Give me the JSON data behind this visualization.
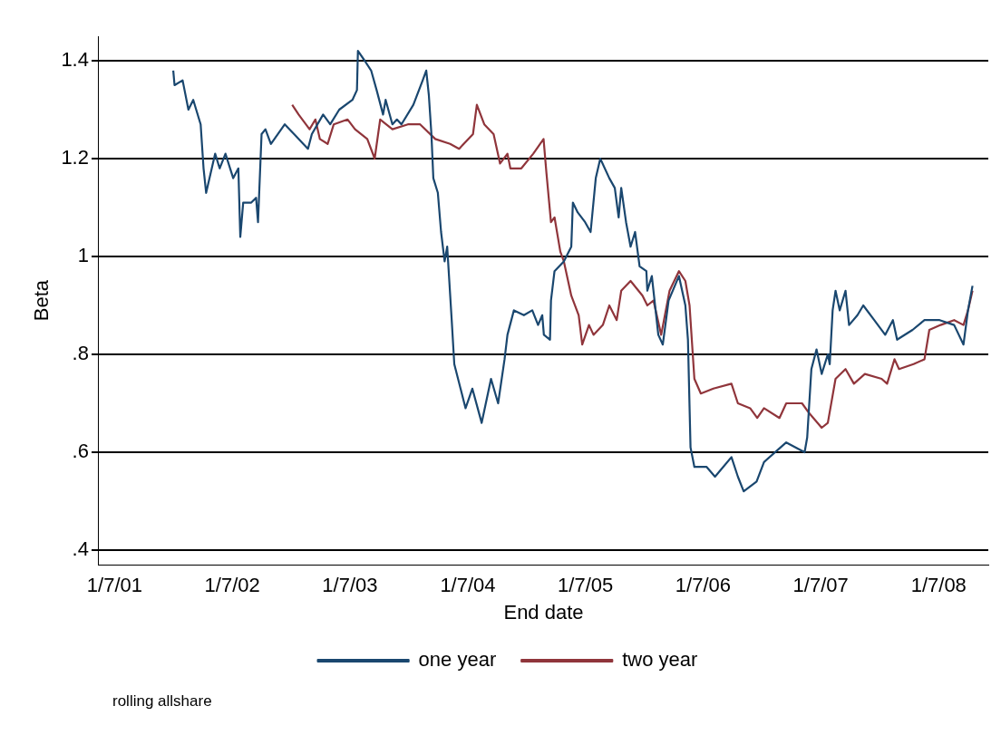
{
  "chart_data": {
    "type": "line",
    "xlabel": "End date",
    "ylabel": "Beta",
    "annotations": [
      "rolling allshare"
    ],
    "xlim": [
      "2001-05-13",
      "2008-12-02"
    ],
    "xticks": [
      {
        "value": "2001-07-01",
        "label": "1/7/01"
      },
      {
        "value": "2002-07-01",
        "label": "1/7/02"
      },
      {
        "value": "2003-07-01",
        "label": "1/7/03"
      },
      {
        "value": "2004-07-01",
        "label": "1/7/04"
      },
      {
        "value": "2005-07-01",
        "label": "1/7/05"
      },
      {
        "value": "2006-07-01",
        "label": "1/7/06"
      },
      {
        "value": "2007-07-01",
        "label": "1/7/07"
      },
      {
        "value": "2008-07-01",
        "label": "1/7/08"
      }
    ],
    "ylim": [
      0.37,
      1.45
    ],
    "yticks": [
      {
        "value": 0.4,
        "label": ".4"
      },
      {
        "value": 0.6,
        "label": ".6"
      },
      {
        "value": 0.8,
        "label": ".8"
      },
      1,
      1.2,
      1.4
    ],
    "grid": "y",
    "legend": "bottom",
    "marker": "none",
    "line_style": "solid",
    "series": [
      {
        "name": "one year",
        "color": "#1a476f",
        "x": [
          "2001-12-30",
          "2002-01-03",
          "2002-01-28",
          "2002-02-15",
          "2002-03-02",
          "2002-03-25",
          "2002-04-03",
          "2002-04-11",
          "2002-05-09",
          "2002-05-23",
          "2002-06-10",
          "2002-07-04",
          "2002-07-20",
          "2002-07-26",
          "2002-08-04",
          "2002-08-29",
          "2002-09-13",
          "2002-09-19",
          "2002-09-30",
          "2002-10-12",
          "2002-10-29",
          "2002-12-11",
          "2003-01-09",
          "2003-02-21",
          "2003-03-05",
          "2003-04-09",
          "2003-05-01",
          "2003-05-29",
          "2003-07-09",
          "2003-07-23",
          "2003-07-26",
          "2003-08-16",
          "2003-09-05",
          "2003-09-22",
          "2003-10-12",
          "2003-10-20",
          "2003-11-10",
          "2003-11-24",
          "2003-12-08",
          "2004-01-14",
          "2004-02-12",
          "2004-02-23",
          "2004-03-02",
          "2004-03-10",
          "2004-03-16",
          "2004-03-30",
          "2004-04-09",
          "2004-04-20",
          "2004-04-28",
          "2004-05-12",
          "2004-05-20",
          "2004-06-24",
          "2004-07-15",
          "2004-08-13",
          "2004-09-11",
          "2004-10-03",
          "2004-10-23",
          "2004-11-01",
          "2004-11-21",
          "2004-12-22",
          "2005-01-17",
          "2005-02-04",
          "2005-02-17",
          "2005-02-22",
          "2005-03-13",
          "2005-03-16",
          "2005-03-27",
          "2005-04-25",
          "2005-05-18",
          "2005-05-23",
          "2005-06-07",
          "2005-06-30",
          "2005-07-17",
          "2005-08-02",
          "2005-08-16",
          "2005-09-13",
          "2005-09-30",
          "2005-10-12",
          "2005-10-20",
          "2005-11-04",
          "2005-11-18",
          "2005-12-02",
          "2005-12-16",
          "2006-01-06",
          "2006-01-09",
          "2006-01-23",
          "2006-02-12",
          "2006-02-26",
          "2006-03-16",
          "2006-04-17",
          "2006-05-07",
          "2006-05-15",
          "2006-05-23",
          "2006-06-04",
          "2006-07-12",
          "2006-08-07",
          "2006-09-27",
          "2006-10-17",
          "2006-11-04",
          "2006-12-14",
          "2007-01-06",
          "2007-03-16",
          "2007-05-12",
          "2007-05-20",
          "2007-06-02",
          "2007-06-18",
          "2007-07-04",
          "2007-07-23",
          "2007-07-29",
          "2007-08-07",
          "2007-08-16",
          "2007-08-29",
          "2007-09-16",
          "2007-09-27",
          "2007-10-23",
          "2007-11-10",
          "2007-12-14",
          "2008-01-17",
          "2008-02-10",
          "2008-02-23",
          "2008-04-11",
          "2008-05-18",
          "2008-07-04",
          "2008-08-18",
          "2008-09-16",
          "2008-09-30",
          "2008-10-14"
        ],
        "values": [
          1.38,
          1.35,
          1.36,
          1.3,
          1.32,
          1.27,
          1.18,
          1.13,
          1.21,
          1.18,
          1.21,
          1.16,
          1.18,
          1.04,
          1.11,
          1.11,
          1.12,
          1.07,
          1.25,
          1.26,
          1.23,
          1.27,
          1.25,
          1.22,
          1.25,
          1.29,
          1.27,
          1.3,
          1.32,
          1.34,
          1.42,
          1.4,
          1.38,
          1.34,
          1.29,
          1.32,
          1.27,
          1.28,
          1.27,
          1.31,
          1.36,
          1.38,
          1.33,
          1.25,
          1.16,
          1.13,
          1.05,
          0.99,
          1.02,
          0.87,
          0.78,
          0.69,
          0.73,
          0.66,
          0.75,
          0.7,
          0.79,
          0.84,
          0.89,
          0.88,
          0.89,
          0.86,
          0.88,
          0.84,
          0.83,
          0.91,
          0.97,
          0.99,
          1.02,
          1.11,
          1.09,
          1.07,
          1.05,
          1.16,
          1.2,
          1.16,
          1.14,
          1.08,
          1.14,
          1.07,
          1.02,
          1.05,
          0.98,
          0.97,
          0.93,
          0.96,
          0.84,
          0.82,
          0.91,
          0.96,
          0.9,
          0.83,
          0.61,
          0.57,
          0.57,
          0.55,
          0.59,
          0.55,
          0.52,
          0.54,
          0.58,
          0.62,
          0.6,
          0.63,
          0.77,
          0.81,
          0.76,
          0.8,
          0.78,
          0.89,
          0.93,
          0.89,
          0.93,
          0.86,
          0.88,
          0.9,
          0.87,
          0.84,
          0.87,
          0.83,
          0.85,
          0.87,
          0.87,
          0.86,
          0.82,
          0.89,
          0.94
        ]
      },
      {
        "name": "two year",
        "color": "#90353b",
        "x": [
          "2003-01-03",
          "2003-01-23",
          "2003-02-26",
          "2003-03-16",
          "2003-03-30",
          "2003-04-23",
          "2003-05-12",
          "2003-06-24",
          "2003-07-17",
          "2003-08-24",
          "2003-09-16",
          "2003-10-03",
          "2003-11-10",
          "2003-12-28",
          "2004-02-04",
          "2004-03-22",
          "2004-05-07",
          "2004-06-04",
          "2004-07-17",
          "2004-07-29",
          "2004-08-21",
          "2004-09-19",
          "2004-10-09",
          "2004-11-01",
          "2004-11-10",
          "2004-12-14",
          "2005-01-20",
          "2005-02-21",
          "2005-03-02",
          "2005-03-16",
          "2005-03-27",
          "2005-04-14",
          "2005-04-25",
          "2005-05-18",
          "2005-06-10",
          "2005-06-21",
          "2005-07-12",
          "2005-07-26",
          "2005-08-24",
          "2005-09-13",
          "2005-10-06",
          "2005-10-20",
          "2005-11-18",
          "2005-12-25",
          "2006-01-09",
          "2006-01-28",
          "2006-02-21",
          "2006-03-19",
          "2006-04-17",
          "2006-05-07",
          "2006-05-20",
          "2006-06-04",
          "2006-06-24",
          "2006-08-02",
          "2006-09-27",
          "2006-10-17",
          "2006-11-24",
          "2006-12-16",
          "2007-01-06",
          "2007-02-23",
          "2007-03-16",
          "2007-05-04",
          "2007-05-26",
          "2007-07-04",
          "2007-07-23",
          "2007-08-16",
          "2007-09-16",
          "2007-10-12",
          "2007-11-15",
          "2008-01-06",
          "2008-01-23",
          "2008-02-15",
          "2008-02-29",
          "2008-04-14",
          "2008-05-18",
          "2008-06-02",
          "2008-07-07",
          "2008-08-18",
          "2008-09-16",
          "2008-09-30",
          "2008-10-14"
        ],
        "values": [
          1.31,
          1.29,
          1.26,
          1.28,
          1.24,
          1.23,
          1.27,
          1.28,
          1.26,
          1.24,
          1.2,
          1.28,
          1.26,
          1.27,
          1.27,
          1.24,
          1.23,
          1.22,
          1.25,
          1.31,
          1.27,
          1.25,
          1.19,
          1.21,
          1.18,
          1.18,
          1.21,
          1.24,
          1.17,
          1.07,
          1.08,
          1.01,
          0.99,
          0.92,
          0.88,
          0.82,
          0.86,
          0.84,
          0.86,
          0.9,
          0.87,
          0.93,
          0.95,
          0.92,
          0.9,
          0.91,
          0.84,
          0.93,
          0.97,
          0.95,
          0.9,
          0.75,
          0.72,
          0.73,
          0.74,
          0.7,
          0.69,
          0.67,
          0.69,
          0.67,
          0.7,
          0.7,
          0.68,
          0.65,
          0.66,
          0.75,
          0.77,
          0.74,
          0.76,
          0.75,
          0.74,
          0.79,
          0.77,
          0.78,
          0.79,
          0.85,
          0.86,
          0.87,
          0.86,
          0.89,
          0.93
        ]
      }
    ]
  }
}
